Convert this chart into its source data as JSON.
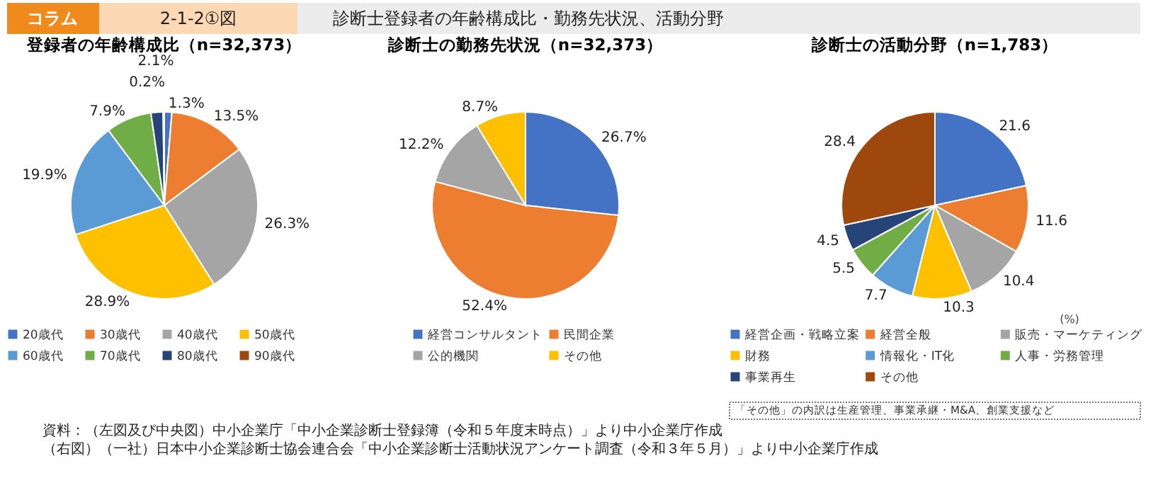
{
  "chart_data": [
    {
      "type": "pie",
      "title": "登録者の年齢構成比（n=32,373）",
      "categories": [
        "20歳代",
        "30歳代",
        "40歳代",
        "50歳代",
        "60歳代",
        "70歳代",
        "80歳代",
        "90歳代"
      ],
      "values": [
        1.3,
        13.5,
        26.3,
        28.9,
        19.9,
        7.9,
        2.1,
        0.2
      ],
      "value_labels": [
        "1.3%",
        "13.5%",
        "26.3%",
        "28.9%",
        "19.9%",
        "7.9%",
        "2.1%",
        "0.2%"
      ],
      "colors": [
        "#4472c4",
        "#ed7d31",
        "#a5a5a5",
        "#ffc000",
        "#5b9bd5",
        "#70ad47",
        "#264478",
        "#9e480e"
      ],
      "legend": "bottom",
      "annotations": [
        "コラム",
        "2-1-2①図",
        "診断士登録者の年齢構成比・勤務先状況、活動分野",
        "資料：（左図及び中央図）中小企業庁「中小企業診断士登録簿（令和５年度末時点）」より中小企業庁作成",
        "（右図）（一社）日本中小企業診断士協会連合会「中小企業診断士活動状況アンケート調査（令和３年５月）」より中小企業庁作成"
      ]
    },
    {
      "type": "pie",
      "title": "診断士の勤務先状況（n=32,373）",
      "categories": [
        "経営コンサルタント",
        "民間企業",
        "公的機関",
        "その他"
      ],
      "values": [
        26.7,
        52.4,
        12.2,
        8.7
      ],
      "value_labels": [
        "26.7%",
        "52.4%",
        "12.2%",
        "8.7%"
      ],
      "colors": [
        "#4472c4",
        "#ed7d31",
        "#a5a5a5",
        "#ffc000"
      ],
      "legend": "bottom"
    },
    {
      "type": "pie",
      "title": "診断士の活動分野（n=1,783）",
      "categories": [
        "経営企画・戦略立案",
        "経営全般",
        "販売・マーケティング",
        "財務",
        "情報化・IT化",
        "人事・労務管理",
        "事業再生",
        "その他"
      ],
      "values": [
        21.6,
        11.6,
        10.4,
        10.3,
        7.7,
        5.5,
        4.5,
        28.4
      ],
      "data_labels": true,
      "colors": [
        "#4472c4",
        "#ed7d31",
        "#a5a5a5",
        "#ffc000",
        "#5b9bd5",
        "#70ad47",
        "#264478",
        "#9e480e"
      ],
      "legend": "bottom",
      "annotations": [
        "(%)",
        "「その他」の内訳は生産管理、事業承継・M&A、創業支援など"
      ]
    }
  ]
}
